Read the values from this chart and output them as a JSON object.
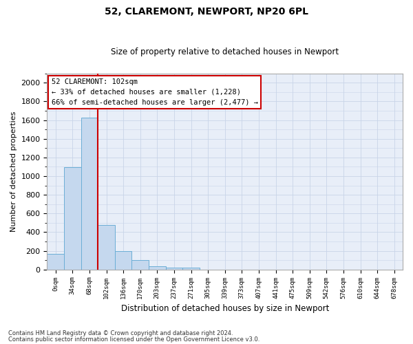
{
  "title1": "52, CLAREMONT, NEWPORT, NP20 6PL",
  "title2": "Size of property relative to detached houses in Newport",
  "xlabel": "Distribution of detached houses by size in Newport",
  "ylabel": "Number of detached properties",
  "categories": [
    "0sqm",
    "34sqm",
    "68sqm",
    "102sqm",
    "136sqm",
    "170sqm",
    "203sqm",
    "237sqm",
    "271sqm",
    "305sqm",
    "339sqm",
    "373sqm",
    "407sqm",
    "441sqm",
    "475sqm",
    "509sqm",
    "542sqm",
    "576sqm",
    "610sqm",
    "644sqm",
    "678sqm"
  ],
  "values": [
    165,
    1095,
    1630,
    480,
    200,
    100,
    38,
    22,
    18,
    0,
    0,
    0,
    0,
    0,
    0,
    0,
    0,
    0,
    0,
    0,
    0
  ],
  "bar_color": "#c5d8ee",
  "bar_edge_color": "#6baed6",
  "vline_color": "#cc0000",
  "annotation_text": "52 CLAREMONT: 102sqm\n← 33% of detached houses are smaller (1,228)\n66% of semi-detached houses are larger (2,477) →",
  "annotation_box_color": "#ffffff",
  "annotation_box_edge": "#cc0000",
  "ylim": [
    0,
    2100
  ],
  "yticks": [
    0,
    200,
    400,
    600,
    800,
    1000,
    1200,
    1400,
    1600,
    1800,
    2000
  ],
  "grid_color": "#c8d4e8",
  "background_color": "#e8eef8",
  "fig_background": "#ffffff",
  "footer1": "Contains HM Land Registry data © Crown copyright and database right 2024.",
  "footer2": "Contains public sector information licensed under the Open Government Licence v3.0."
}
